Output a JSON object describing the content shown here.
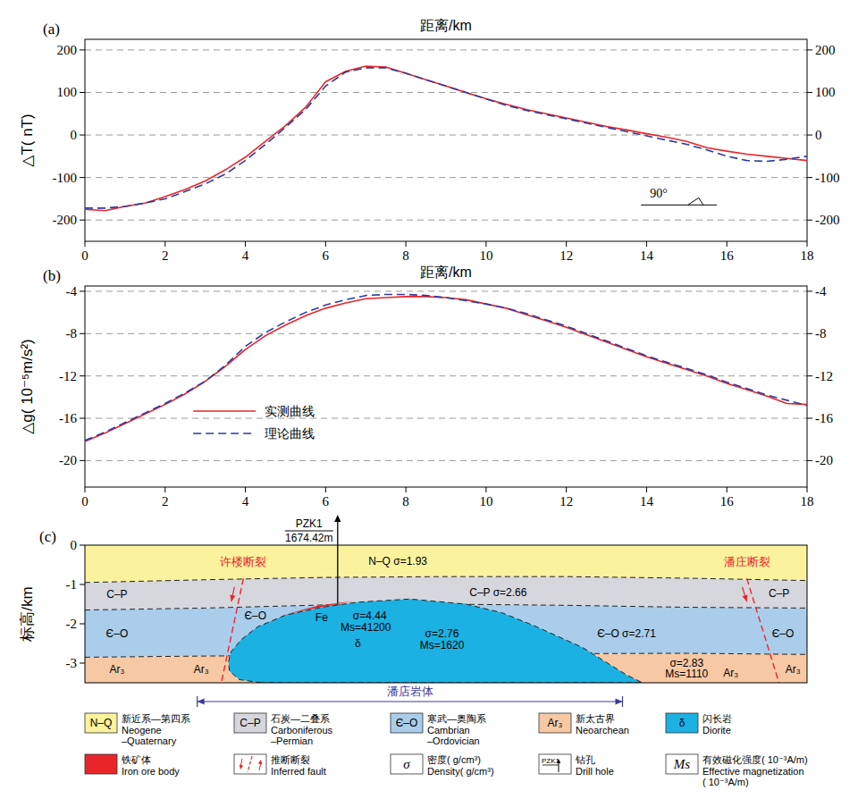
{
  "chart_data": [
    {
      "type": "line",
      "panel": "(a)",
      "xlabel": "距离/km",
      "ylabel": "△T( nT)",
      "x": [
        0,
        0.5,
        1,
        1.5,
        2,
        2.5,
        3,
        3.5,
        4,
        4.5,
        5,
        5.5,
        6,
        6.5,
        7,
        7.5,
        8,
        8.5,
        9,
        9.5,
        10,
        10.5,
        11,
        11.5,
        12,
        12.5,
        13,
        13.5,
        14,
        14.5,
        15,
        15.5,
        16,
        16.5,
        17,
        17.5,
        18
      ],
      "xlim": [
        0,
        18
      ],
      "xticks": [
        0,
        2,
        4,
        6,
        8,
        10,
        12,
        14,
        16,
        18
      ],
      "ylim": [
        -250,
        225
      ],
      "yticks": [
        -200,
        -100,
        0,
        100,
        200
      ],
      "grid": true,
      "series": [
        {
          "color": "#e8262a",
          "line_style": "solid",
          "values": [
            -175,
            -178,
            -168,
            -160,
            -145,
            -128,
            -108,
            -82,
            -52,
            -15,
            22,
            65,
            125,
            150,
            162,
            160,
            145,
            130,
            115,
            100,
            85,
            72,
            60,
            50,
            40,
            30,
            20,
            12,
            3,
            -5,
            -15,
            -30,
            -38,
            -45,
            -50,
            -55,
            -60
          ]
        },
        {
          "color": "#2f3a9e",
          "line_style": "dashed",
          "values": [
            -172,
            -172,
            -168,
            -160,
            -150,
            -133,
            -115,
            -92,
            -60,
            -22,
            18,
            60,
            115,
            148,
            158,
            158,
            145,
            130,
            115,
            100,
            85,
            70,
            58,
            48,
            38,
            28,
            18,
            8,
            -2,
            -12,
            -22,
            -35,
            -50,
            -60,
            -62,
            -57,
            -50
          ]
        }
      ],
      "annotations": [
        {
          "text": "90°"
        }
      ]
    },
    {
      "type": "line",
      "panel": "(b)",
      "xlabel": "距离/km",
      "ylabel": "△g( 10⁻⁵m/s²)",
      "x": [
        0,
        0.5,
        1,
        1.5,
        2,
        2.5,
        3,
        3.5,
        4,
        4.5,
        5,
        5.5,
        6,
        6.5,
        7,
        7.5,
        8,
        8.5,
        9,
        9.5,
        10,
        10.5,
        11,
        11.5,
        12,
        12.5,
        13,
        13.5,
        14,
        14.5,
        15,
        15.5,
        16,
        16.5,
        17,
        17.5,
        18
      ],
      "xlim": [
        0,
        18
      ],
      "xticks": [
        0,
        2,
        4,
        6,
        8,
        10,
        12,
        14,
        16,
        18
      ],
      "ylim": [
        -22.5,
        -3.5
      ],
      "yticks": [
        -20,
        -16,
        -12,
        -8,
        -4
      ],
      "grid": true,
      "legend": "lower left",
      "series": [
        {
          "name": "实测曲线",
          "color": "#e8262a",
          "line_style": "solid",
          "values": [
            -18.2,
            -17.4,
            -16.5,
            -15.6,
            -14.7,
            -13.7,
            -12.5,
            -11.1,
            -9.5,
            -8.2,
            -7.2,
            -6.3,
            -5.6,
            -5.1,
            -4.7,
            -4.6,
            -4.5,
            -4.5,
            -4.6,
            -4.8,
            -5.2,
            -5.6,
            -6.2,
            -6.8,
            -7.4,
            -8.1,
            -8.8,
            -9.5,
            -10.2,
            -10.8,
            -11.4,
            -12.0,
            -12.7,
            -13.3,
            -13.9,
            -14.6,
            -14.7
          ]
        },
        {
          "name": "理论曲线",
          "color": "#2f3a9e",
          "line_style": "dashed",
          "values": [
            -18.1,
            -17.3,
            -16.4,
            -15.5,
            -14.6,
            -13.6,
            -12.5,
            -11.0,
            -9.2,
            -7.9,
            -6.9,
            -6.0,
            -5.3,
            -4.8,
            -4.4,
            -4.3,
            -4.3,
            -4.4,
            -4.6,
            -4.9,
            -5.2,
            -5.6,
            -6.1,
            -6.7,
            -7.3,
            -8.0,
            -8.7,
            -9.4,
            -10.1,
            -10.7,
            -11.3,
            -11.9,
            -12.6,
            -13.2,
            -13.8,
            -14.3,
            -14.8
          ]
        }
      ]
    }
  ],
  "section": {
    "panel": "(c)",
    "ylabel": "标高/km",
    "xlim": [
      0,
      18
    ],
    "ylim": [
      -3.5,
      0
    ],
    "yticks": [
      0,
      -1,
      -2,
      -3
    ],
    "x": [
      0,
      3,
      6,
      9,
      12,
      15,
      18
    ],
    "boundaries": [
      [
        0,
        0,
        0,
        0,
        0,
        0,
        0
      ],
      [
        -0.95,
        -0.88,
        -0.82,
        -0.8,
        -0.8,
        -0.84,
        -0.9
      ],
      [
        -1.65,
        -1.6,
        -1.52,
        -1.5,
        -1.53,
        -1.58,
        -1.6
      ],
      [
        -2.85,
        -2.82,
        -2.8,
        -2.78,
        -2.76,
        -2.75,
        -2.78
      ],
      [
        -3.5,
        -3.5,
        -3.5,
        -3.5,
        -3.5,
        -3.5,
        -3.5
      ]
    ],
    "layers": [
      {
        "color": "#fbf29d"
      },
      {
        "color": "#d6d6dd"
      },
      {
        "color": "#a9cdea"
      },
      {
        "color": "#f7c8a4"
      }
    ],
    "intrusion": {
      "color": "#1bb1e2",
      "points": [
        [
          4.4,
          -3.5
        ],
        [
          3.85,
          -3.42
        ],
        [
          3.6,
          -3.2
        ],
        [
          3.58,
          -2.95
        ],
        [
          3.65,
          -2.7
        ],
        [
          3.9,
          -2.4
        ],
        [
          4.3,
          -2.08
        ],
        [
          5.0,
          -1.78
        ],
        [
          5.9,
          -1.58
        ],
        [
          6.8,
          -1.45
        ],
        [
          8.1,
          -1.37
        ],
        [
          9.5,
          -1.5
        ],
        [
          10.4,
          -1.72
        ],
        [
          11.2,
          -2.05
        ],
        [
          12.4,
          -2.6
        ],
        [
          13.5,
          -3.3
        ],
        [
          13.9,
          -3.5
        ]
      ]
    },
    "ore": {
      "color": "#e8262a",
      "points": [
        [
          4.9,
          -1.79
        ],
        [
          5.8,
          -1.54
        ],
        [
          6.7,
          -1.42
        ],
        [
          6.3,
          -1.5
        ],
        [
          5.6,
          -1.63
        ]
      ]
    },
    "faults": [
      {
        "label": "许楼断裂",
        "top": [
          3.95,
          -0.85
        ],
        "bottom": [
          3.4,
          -3.5
        ]
      },
      {
        "label": "潘庄断裂",
        "top": [
          16.5,
          -0.85
        ],
        "bottom": [
          17.3,
          -3.5
        ]
      }
    ],
    "drill": {
      "name": "PZK1",
      "depth": "1674.42m",
      "x": 6.3,
      "bottom": -1.48
    },
    "pluton": {
      "label": "潘店岩体",
      "from": 2.8,
      "to": 13.4
    },
    "labels": [
      {
        "text": "N–Q  σ=1.93",
        "at": [
          7.8,
          -0.42
        ]
      },
      {
        "text": "C–P",
        "at": [
          0.8,
          -1.25
        ]
      },
      {
        "text": "C–P  σ=2.66",
        "at": [
          10.3,
          -1.2
        ]
      },
      {
        "text": "C–P",
        "at": [
          17.3,
          -1.22
        ]
      },
      {
        "text": "Є–O",
        "at": [
          0.8,
          -2.25
        ]
      },
      {
        "text": "Є–O",
        "at": [
          4.25,
          -1.8
        ]
      },
      {
        "text": "Є–O  σ=2.71",
        "at": [
          13.5,
          -2.25
        ]
      },
      {
        "text": "Є–O",
        "at": [
          17.4,
          -2.25
        ]
      },
      {
        "text": "Ar₃",
        "at": [
          0.8,
          -3.15
        ]
      },
      {
        "text": "Ar₃",
        "at": [
          2.9,
          -3.15
        ]
      },
      {
        "text": "σ=2.83",
        "at": [
          15.0,
          -3.0
        ]
      },
      {
        "text": "Ms=1110",
        "at": [
          15.0,
          -3.28
        ]
      },
      {
        "text": "Ar₃",
        "at": [
          16.1,
          -3.25
        ]
      },
      {
        "text": "Ar₃",
        "at": [
          17.65,
          -3.15
        ]
      },
      {
        "text": "Fe",
        "at": [
          5.9,
          -1.85
        ]
      },
      {
        "text": "σ=4.44",
        "at": [
          7.1,
          -1.8
        ]
      },
      {
        "text": "Ms=41200",
        "at": [
          7.0,
          -2.1
        ]
      },
      {
        "text": "δ",
        "at": [
          6.8,
          -2.5
        ]
      },
      {
        "text": "σ=2.76",
        "at": [
          8.9,
          -2.25
        ]
      },
      {
        "text": "Ms=1620",
        "at": [
          8.9,
          -2.55
        ]
      }
    ]
  },
  "key": {
    "items": [
      {
        "kind": "fill",
        "symbol": "N–Q",
        "color": "#fbf29d",
        "zh": "新近系—第四系",
        "en": [
          "Neogene",
          "–Quaternary"
        ]
      },
      {
        "kind": "fill",
        "symbol": "C–P",
        "color": "#d6d6dd",
        "zh": "石炭—二叠系",
        "en": [
          "Carboniferous",
          "–Permian"
        ]
      },
      {
        "kind": "fill",
        "symbol": "Є–O",
        "color": "#a9cdea",
        "zh": "寒武—奥陶系",
        "en": [
          "Cambrian",
          "–Ordovician"
        ]
      },
      {
        "kind": "fill",
        "symbol": "Ar₃",
        "color": "#f7c8a4",
        "zh": "新太古界",
        "en": [
          "Neoarchean"
        ]
      },
      {
        "kind": "fill",
        "symbol": "δ",
        "color": "#1bb1e2",
        "zh": "闪长岩",
        "en": [
          "Diorite"
        ]
      },
      {
        "kind": "fill",
        "color": "#e8262a",
        "zh": "铁矿体",
        "en": [
          "Iron ore body"
        ]
      },
      {
        "kind": "fault",
        "zh": "推断断裂",
        "en": [
          "Inferred fault"
        ]
      },
      {
        "kind": "text",
        "symbol": "σ",
        "zh": "密度( g/cm³)",
        "en": [
          "Density( g/cm³)"
        ]
      },
      {
        "kind": "drill",
        "symbol": "PZK1",
        "zh": "钻孔",
        "en": [
          "Drill hole"
        ]
      },
      {
        "kind": "text",
        "symbol": "Ms",
        "zh": "有效磁化强度( 10⁻³A/m)",
        "en": [
          "Effective magnetization",
          "( 10⁻³A/m)"
        ]
      }
    ]
  }
}
